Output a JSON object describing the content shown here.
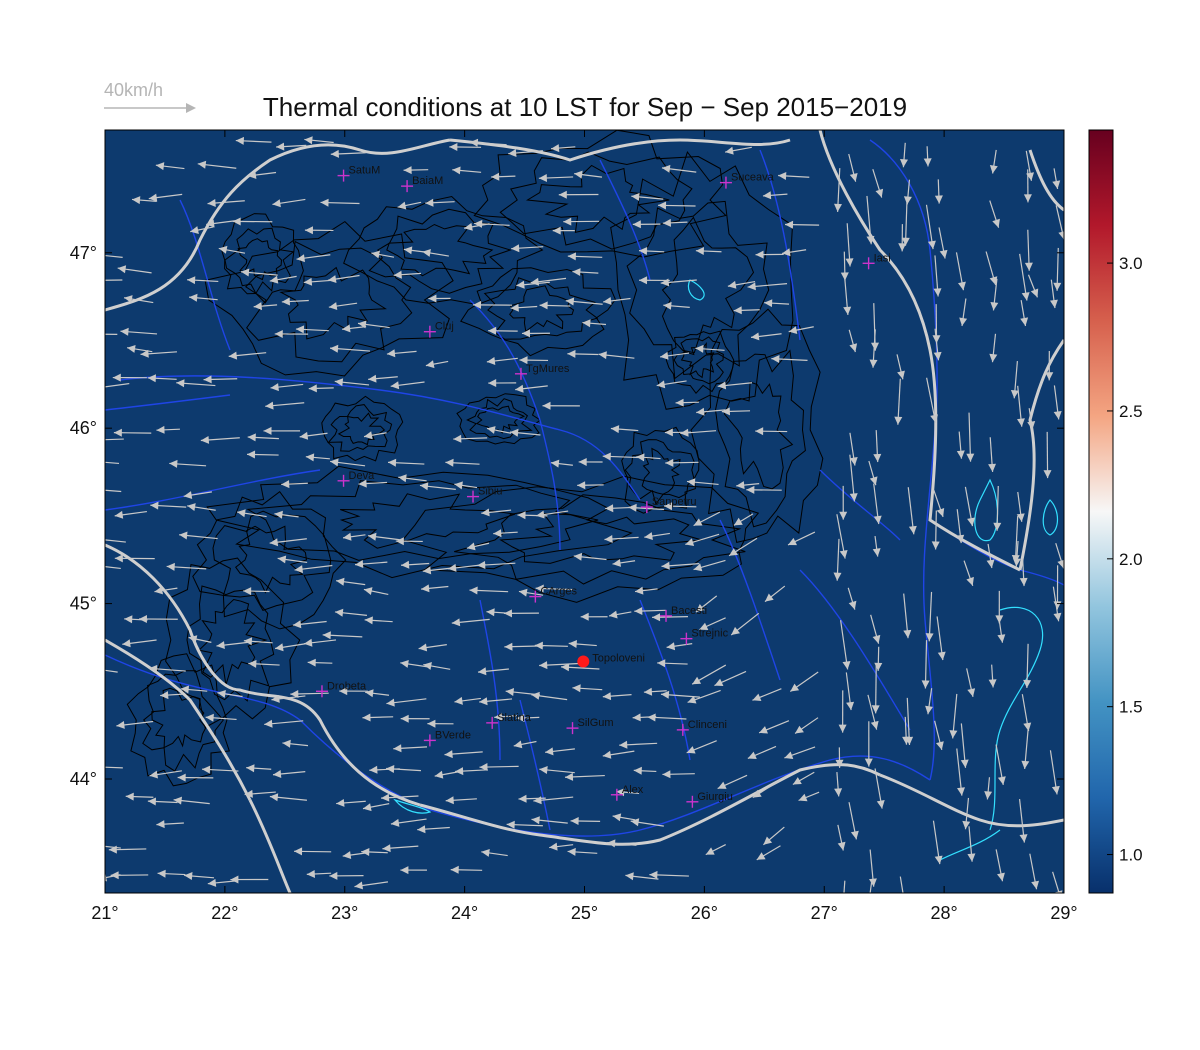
{
  "title": "Thermal conditions at 10 LST for Sep − Sep  2015−2019",
  "reference_vector": {
    "label": "40km/h",
    "color": "#b5b5b5"
  },
  "map": {
    "lon_range": [
      21,
      29
    ],
    "lat_range": [
      43.35,
      47.7
    ],
    "background_color": "#0d3a6e",
    "river_color": "#1f45e6",
    "border_color": "#cfcfcf",
    "lake_color": "#33e0ff",
    "contour_color": "#000000",
    "vector_color": "#c8c8c8",
    "city_marker_color": "#cc33cc",
    "highlight_color": "#ff1a1a"
  },
  "x_ticks": [
    "21°",
    "22°",
    "23°",
    "24°",
    "25°",
    "26°",
    "27°",
    "28°",
    "29°"
  ],
  "y_ticks": [
    "44°",
    "45°",
    "46°",
    "47°"
  ],
  "x_tick_values": [
    21,
    22,
    23,
    24,
    25,
    26,
    27,
    28,
    29
  ],
  "y_tick_values": [
    44,
    45,
    46,
    47
  ],
  "colorbar": {
    "range": [
      0.87,
      3.45
    ],
    "ticks": [
      1.0,
      1.5,
      2.0,
      2.5,
      3.0
    ],
    "tick_labels": [
      "1.0",
      "1.5",
      "2.0",
      "2.5",
      "3.0"
    ],
    "stops": [
      "#08306b",
      "#2166ac",
      "#4393c3",
      "#92c5de",
      "#f7f7f7",
      "#f4a582",
      "#d6604d",
      "#b2182b",
      "#67001f"
    ]
  },
  "cities": [
    {
      "name": "SatuM",
      "lon": 22.99,
      "lat": 47.44
    },
    {
      "name": "BaiaM",
      "lon": 23.52,
      "lat": 47.38
    },
    {
      "name": "Suceava",
      "lon": 26.18,
      "lat": 47.4
    },
    {
      "name": "Iasi",
      "lon": 27.37,
      "lat": 46.94
    },
    {
      "name": "Cluj",
      "lon": 23.71,
      "lat": 46.55
    },
    {
      "name": "TgMures",
      "lon": 24.47,
      "lat": 46.31
    },
    {
      "name": "Deva",
      "lon": 22.99,
      "lat": 45.7
    },
    {
      "name": "Sibiu",
      "lon": 24.07,
      "lat": 45.61
    },
    {
      "name": "Sanpetru",
      "lon": 25.52,
      "lat": 45.55
    },
    {
      "name": "CArges",
      "lon": 24.59,
      "lat": 45.04
    },
    {
      "name": "Bacesti",
      "lon": 25.68,
      "lat": 44.93
    },
    {
      "name": "Strejnic",
      "lon": 25.85,
      "lat": 44.8
    },
    {
      "name": "Drobeta",
      "lon": 22.81,
      "lat": 44.5
    },
    {
      "name": "Slatina",
      "lon": 24.23,
      "lat": 44.32
    },
    {
      "name": "SilGum",
      "lon": 24.9,
      "lat": 44.29
    },
    {
      "name": "Clinceni",
      "lon": 25.82,
      "lat": 44.28
    },
    {
      "name": "BVerde",
      "lon": 23.71,
      "lat": 44.22
    },
    {
      "name": "Alex",
      "lon": 25.27,
      "lat": 43.91
    },
    {
      "name": "Giurgiu",
      "lon": 25.9,
      "lat": 43.87
    }
  ],
  "highlight_site": {
    "name": "Topoloveni",
    "lon": 24.99,
    "lat": 44.67
  }
}
